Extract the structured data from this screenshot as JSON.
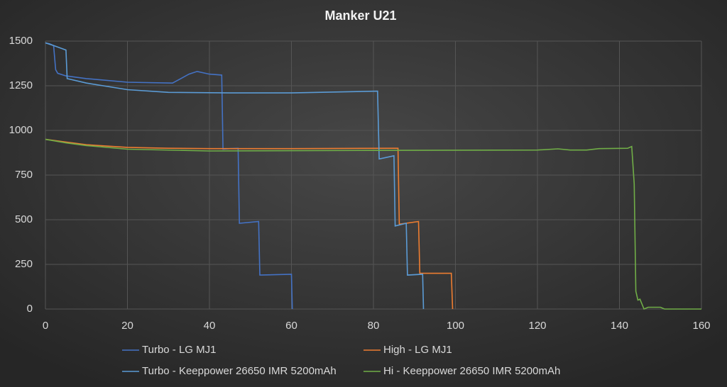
{
  "chart_data": {
    "type": "line",
    "title": "Manker  U21",
    "xlim": [
      0,
      160
    ],
    "xticks": [
      0,
      20,
      40,
      60,
      80,
      100,
      120,
      140,
      160
    ],
    "ylim": [
      0,
      1500
    ],
    "yticks": [
      0,
      250,
      500,
      750,
      1000,
      1250,
      1500
    ],
    "grid": true,
    "legend": "bottom",
    "series": [
      {
        "name": "Turbo - LG MJ1",
        "color": "#4472c4",
        "x": [
          0,
          1,
          2,
          2.5,
          3,
          5,
          10,
          20,
          31,
          33,
          35,
          37,
          40,
          43,
          43.3,
          45,
          47,
          47.3,
          52,
          52.3,
          60,
          60.2
        ],
        "values": [
          1490,
          1485,
          1475,
          1340,
          1320,
          1305,
          1290,
          1270,
          1265,
          1290,
          1315,
          1330,
          1315,
          1310,
          895,
          898,
          900,
          480,
          490,
          190,
          195,
          0
        ]
      },
      {
        "name": "High - LG MJ1",
        "color": "#ed7d31",
        "x": [
          0,
          5,
          10,
          20,
          30,
          40,
          60,
          85,
          86,
          86.3,
          91,
          91.3,
          99,
          99.3
        ],
        "values": [
          950,
          935,
          920,
          905,
          900,
          898,
          898,
          900,
          900,
          475,
          490,
          200,
          200,
          0
        ]
      },
      {
        "name": "Turbo - Keeppower 26650 IMR 5200mAh",
        "color": "#5b9bd5",
        "x": [
          0,
          2,
          5,
          5.3,
          10,
          20,
          30,
          45,
          60,
          81,
          81.4,
          85,
          85.3,
          88,
          88.3,
          92,
          92.2
        ],
        "values": [
          1490,
          1475,
          1450,
          1290,
          1265,
          1228,
          1213,
          1210,
          1210,
          1220,
          840,
          858,
          465,
          480,
          190,
          195,
          0
        ]
      },
      {
        "name": "Hi - Keeppower 26650 IMR 5200mAh",
        "color": "#70ad47",
        "x": [
          0,
          5,
          10,
          20,
          40,
          80,
          120,
          125,
          128,
          132,
          135,
          142,
          143,
          143.6,
          144,
          144.5,
          145,
          146,
          147,
          150,
          151,
          160
        ],
        "values": [
          950,
          930,
          915,
          895,
          885,
          888,
          890,
          897,
          890,
          890,
          898,
          900,
          910,
          700,
          100,
          50,
          55,
          0,
          10,
          10,
          0,
          0
        ]
      }
    ]
  }
}
